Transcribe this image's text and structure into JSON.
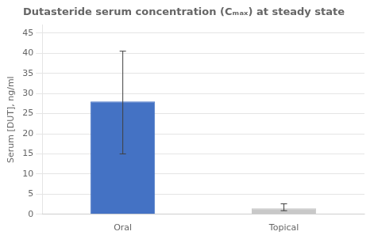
{
  "chart_data": {
    "type": "bar",
    "title": "Dutasteride serum concentration (Cₘₐₓ) at steady state",
    "ylabel": "Serum [DUT], ng/ml",
    "categories": [
      "Oral",
      "Topical"
    ],
    "values": [
      28.0,
      1.5
    ],
    "errors_upper": [
      12.5,
      1.1
    ],
    "errors_lower": [
      13.0,
      0.6
    ],
    "colors": [
      "#4472C4",
      "#C8C8C8"
    ],
    "ylim": [
      0,
      47
    ],
    "yticks": [
      0,
      5,
      10,
      15,
      20,
      25,
      30,
      35,
      40,
      45
    ],
    "grid": true
  }
}
